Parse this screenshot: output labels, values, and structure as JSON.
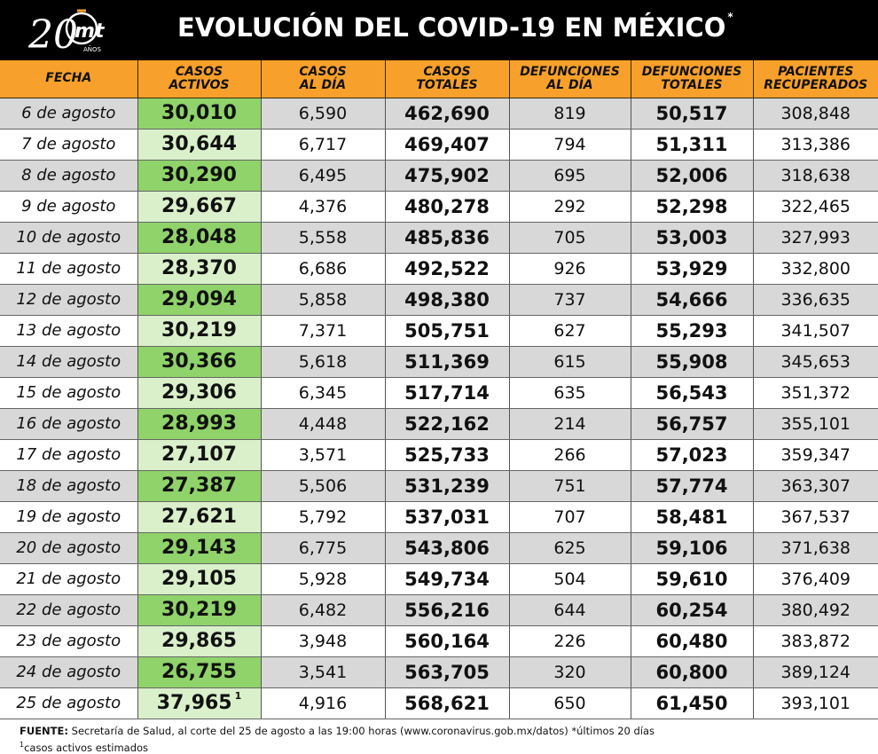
{
  "header": {
    "logo_number": "20",
    "logo_brand": "mt",
    "logo_sub": "AÑOS",
    "title": "EVOLUCIÓN DEL COVID-19 EN MÉXICO",
    "title_mark": "*"
  },
  "table": {
    "columns": [
      "FECHA",
      "CASOS\nACTIVOS",
      "CASOS\nAL DÍA",
      "CASOS\nTOTALES",
      "DEFUNCIONES\nAL DÍA",
      "DEFUNCIONES\nTOTALES",
      "PACIENTES\nRECUPERADOS"
    ],
    "rows": [
      {
        "fecha": "6 de agosto",
        "activos": "30,010",
        "casos_dia": "6,590",
        "casos_totales": "462,690",
        "def_dia": "819",
        "def_totales": "50,517",
        "recuperados": "308,848"
      },
      {
        "fecha": "7 de agosto",
        "activos": "30,644",
        "casos_dia": "6,717",
        "casos_totales": "469,407",
        "def_dia": "794",
        "def_totales": "51,311",
        "recuperados": "313,386"
      },
      {
        "fecha": "8 de agosto",
        "activos": "30,290",
        "casos_dia": "6,495",
        "casos_totales": "475,902",
        "def_dia": "695",
        "def_totales": "52,006",
        "recuperados": "318,638"
      },
      {
        "fecha": "9 de agosto",
        "activos": "29,667",
        "casos_dia": "4,376",
        "casos_totales": "480,278",
        "def_dia": "292",
        "def_totales": "52,298",
        "recuperados": "322,465"
      },
      {
        "fecha": "10 de agosto",
        "activos": "28,048",
        "casos_dia": "5,558",
        "casos_totales": "485,836",
        "def_dia": "705",
        "def_totales": "53,003",
        "recuperados": "327,993"
      },
      {
        "fecha": "11 de agosto",
        "activos": "28,370",
        "casos_dia": "6,686",
        "casos_totales": "492,522",
        "def_dia": "926",
        "def_totales": "53,929",
        "recuperados": "332,800"
      },
      {
        "fecha": "12 de agosto",
        "activos": "29,094",
        "casos_dia": "5,858",
        "casos_totales": "498,380",
        "def_dia": "737",
        "def_totales": "54,666",
        "recuperados": "336,635"
      },
      {
        "fecha": "13 de agosto",
        "activos": "30,219",
        "casos_dia": "7,371",
        "casos_totales": "505,751",
        "def_dia": "627",
        "def_totales": "55,293",
        "recuperados": "341,507"
      },
      {
        "fecha": "14 de agosto",
        "activos": "30,366",
        "casos_dia": "5,618",
        "casos_totales": "511,369",
        "def_dia": "615",
        "def_totales": "55,908",
        "recuperados": "345,653"
      },
      {
        "fecha": "15 de agosto",
        "activos": "29,306",
        "casos_dia": "6,345",
        "casos_totales": "517,714",
        "def_dia": "635",
        "def_totales": "56,543",
        "recuperados": "351,372"
      },
      {
        "fecha": "16 de agosto",
        "activos": "28,993",
        "casos_dia": "4,448",
        "casos_totales": "522,162",
        "def_dia": "214",
        "def_totales": "56,757",
        "recuperados": "355,101"
      },
      {
        "fecha": "17 de agosto",
        "activos": "27,107",
        "casos_dia": "3,571",
        "casos_totales": "525,733",
        "def_dia": "266",
        "def_totales": "57,023",
        "recuperados": "359,347"
      },
      {
        "fecha": "18 de agosto",
        "activos": "27,387",
        "casos_dia": "5,506",
        "casos_totales": "531,239",
        "def_dia": "751",
        "def_totales": "57,774",
        "recuperados": "363,307"
      },
      {
        "fecha": "19 de agosto",
        "activos": "27,621",
        "casos_dia": "5,792",
        "casos_totales": "537,031",
        "def_dia": "707",
        "def_totales": "58,481",
        "recuperados": "367,537"
      },
      {
        "fecha": "20 de agosto",
        "activos": "29,143",
        "casos_dia": "6,775",
        "casos_totales": "543,806",
        "def_dia": "625",
        "def_totales": "59,106",
        "recuperados": "371,638"
      },
      {
        "fecha": "21 de agosto",
        "activos": "29,105",
        "casos_dia": "5,928",
        "casos_totales": "549,734",
        "def_dia": "504",
        "def_totales": "59,610",
        "recuperados": "376,409"
      },
      {
        "fecha": "22 de agosto",
        "activos": "30,219",
        "casos_dia": "6,482",
        "casos_totales": "556,216",
        "def_dia": "644",
        "def_totales": "60,254",
        "recuperados": "380,492"
      },
      {
        "fecha": "23 de agosto",
        "activos": "29,865",
        "casos_dia": "3,948",
        "casos_totales": "560,164",
        "def_dia": "226",
        "def_totales": "60,480",
        "recuperados": "383,872"
      },
      {
        "fecha": "24 de agosto",
        "activos": "26,755",
        "casos_dia": "3,541",
        "casos_totales": "563,705",
        "def_dia": "320",
        "def_totales": "60,800",
        "recuperados": "389,124"
      },
      {
        "fecha": "25 de agosto",
        "activos": "37,965",
        "activos_mark": "1",
        "casos_dia": "4,916",
        "casos_totales": "568,621",
        "def_dia": "650",
        "def_totales": "61,450",
        "recuperados": "393,101"
      }
    ]
  },
  "footer": {
    "source_label": "FUENTE:",
    "source_text": " Secretaría de Salud, al corte del 25 de agosto a las 19:00 horas (www.coronavirus.gob.mx/datos) *últimos 20 días",
    "note_mark": "1",
    "note_text": "casos activos estimados"
  },
  "colors": {
    "header_bg": "#000000",
    "column_header_bg": "#f7a02b",
    "active_dark": "#8fd36a",
    "active_light": "#d9f0ca",
    "row_gray": "#d8d8d8",
    "logo_accent": "#f7a02b"
  },
  "icons": {
    "logo": "mt-20-anos-logo"
  }
}
